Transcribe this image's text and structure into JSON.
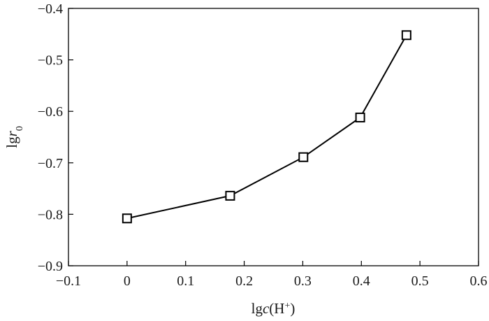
{
  "chart_data": {
    "type": "line",
    "xlabel_parts": [
      "lg",
      "c",
      "(H",
      "+",
      ")"
    ],
    "ylabel_parts": [
      "lg",
      "r",
      "0"
    ],
    "xlim": [
      -0.1,
      0.6
    ],
    "ylim": [
      -0.9,
      -0.4
    ],
    "xticks": [
      -0.1,
      0,
      0.1,
      0.2,
      0.3,
      0.4,
      0.5,
      0.6
    ],
    "xtick_labels": [
      "−0.1",
      "0",
      "0.1",
      "0.2",
      "0.3",
      "0.4",
      "0.5",
      "0.6"
    ],
    "yticks": [
      -0.9,
      -0.8,
      -0.7,
      -0.6,
      -0.5,
      -0.4
    ],
    "ytick_labels": [
      "−0.9",
      "−0.8",
      "−0.7",
      "−0.6",
      "−0.5",
      "−0.4"
    ],
    "x": [
      0,
      0.176,
      0.301,
      0.398,
      0.477
    ],
    "y": [
      -0.808,
      -0.764,
      -0.689,
      -0.612,
      -0.452
    ],
    "marker": "open-square",
    "grid": false,
    "line_color": "#000000"
  }
}
